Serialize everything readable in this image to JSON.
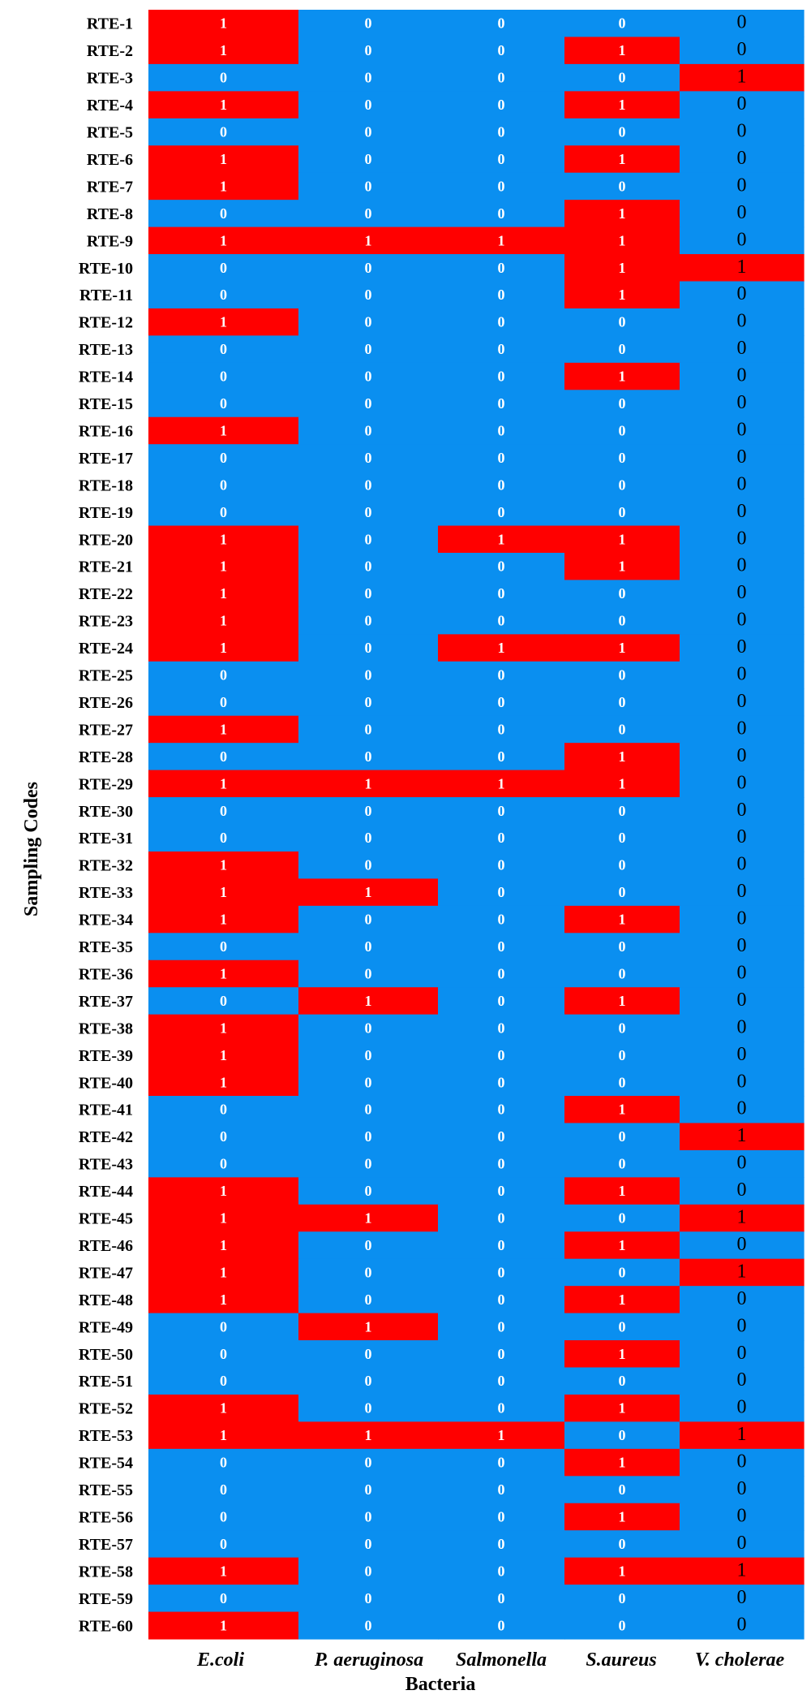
{
  "chart_data": {
    "type": "heatmap",
    "title": "",
    "xlabel": "Bacteria",
    "ylabel": "Sampling Codes",
    "columns": [
      "E.coli",
      "P. aeruginosa",
      "Salmonella",
      "S.aureus",
      "V. cholerae"
    ],
    "rows": [
      "RTE-1",
      "RTE-2",
      "RTE-3",
      "RTE-4",
      "RTE-5",
      "RTE-6",
      "RTE-7",
      "RTE-8",
      "RTE-9",
      "RTE-10",
      "RTE-11",
      "RTE-12",
      "RTE-13",
      "RTE-14",
      "RTE-15",
      "RTE-16",
      "RTE-17",
      "RTE-18",
      "RTE-19",
      "RTE-20",
      "RTE-21",
      "RTE-22",
      "RTE-23",
      "RTE-24",
      "RTE-25",
      "RTE-26",
      "RTE-27",
      "RTE-28",
      "RTE-29",
      "RTE-30",
      "RTE-31",
      "RTE-32",
      "RTE-33",
      "RTE-34",
      "RTE-35",
      "RTE-36",
      "RTE-37",
      "RTE-38",
      "RTE-39",
      "RTE-40",
      "RTE-41",
      "RTE-42",
      "RTE-43",
      "RTE-44",
      "RTE-45",
      "RTE-46",
      "RTE-47",
      "RTE-48",
      "RTE-49",
      "RTE-50",
      "RTE-51",
      "RTE-52",
      "RTE-53",
      "RTE-54",
      "RTE-55",
      "RTE-56",
      "RTE-57",
      "RTE-58",
      "RTE-59",
      "RTE-60"
    ],
    "values": [
      [
        1,
        0,
        0,
        0,
        0
      ],
      [
        1,
        0,
        0,
        1,
        0
      ],
      [
        0,
        0,
        0,
        0,
        1
      ],
      [
        1,
        0,
        0,
        1,
        0
      ],
      [
        0,
        0,
        0,
        0,
        0
      ],
      [
        1,
        0,
        0,
        1,
        0
      ],
      [
        1,
        0,
        0,
        0,
        0
      ],
      [
        0,
        0,
        0,
        1,
        0
      ],
      [
        1,
        1,
        1,
        1,
        0
      ],
      [
        0,
        0,
        0,
        1,
        1
      ],
      [
        0,
        0,
        0,
        1,
        0
      ],
      [
        1,
        0,
        0,
        0,
        0
      ],
      [
        0,
        0,
        0,
        0,
        0
      ],
      [
        0,
        0,
        0,
        1,
        0
      ],
      [
        0,
        0,
        0,
        0,
        0
      ],
      [
        1,
        0,
        0,
        0,
        0
      ],
      [
        0,
        0,
        0,
        0,
        0
      ],
      [
        0,
        0,
        0,
        0,
        0
      ],
      [
        0,
        0,
        0,
        0,
        0
      ],
      [
        1,
        0,
        1,
        1,
        0
      ],
      [
        1,
        0,
        0,
        1,
        0
      ],
      [
        1,
        0,
        0,
        0,
        0
      ],
      [
        1,
        0,
        0,
        0,
        0
      ],
      [
        1,
        0,
        1,
        1,
        0
      ],
      [
        0,
        0,
        0,
        0,
        0
      ],
      [
        0,
        0,
        0,
        0,
        0
      ],
      [
        1,
        0,
        0,
        0,
        0
      ],
      [
        0,
        0,
        0,
        1,
        0
      ],
      [
        1,
        1,
        1,
        1,
        0
      ],
      [
        0,
        0,
        0,
        0,
        0
      ],
      [
        0,
        0,
        0,
        0,
        0
      ],
      [
        1,
        0,
        0,
        0,
        0
      ],
      [
        1,
        1,
        0,
        0,
        0
      ],
      [
        1,
        0,
        0,
        1,
        0
      ],
      [
        0,
        0,
        0,
        0,
        0
      ],
      [
        1,
        0,
        0,
        0,
        0
      ],
      [
        0,
        1,
        0,
        1,
        0
      ],
      [
        1,
        0,
        0,
        0,
        0
      ],
      [
        1,
        0,
        0,
        0,
        0
      ],
      [
        1,
        0,
        0,
        0,
        0
      ],
      [
        0,
        0,
        0,
        1,
        0
      ],
      [
        0,
        0,
        0,
        0,
        1
      ],
      [
        0,
        0,
        0,
        0,
        0
      ],
      [
        1,
        0,
        0,
        1,
        0
      ],
      [
        1,
        1,
        0,
        0,
        1
      ],
      [
        1,
        0,
        0,
        1,
        0
      ],
      [
        1,
        0,
        0,
        0,
        1
      ],
      [
        1,
        0,
        0,
        1,
        0
      ],
      [
        0,
        1,
        0,
        0,
        0
      ],
      [
        0,
        0,
        0,
        1,
        0
      ],
      [
        0,
        0,
        0,
        0,
        0
      ],
      [
        1,
        0,
        0,
        1,
        0
      ],
      [
        1,
        1,
        1,
        0,
        1
      ],
      [
        0,
        0,
        0,
        1,
        0
      ],
      [
        0,
        0,
        0,
        0,
        0
      ],
      [
        0,
        0,
        0,
        1,
        0
      ],
      [
        0,
        0,
        0,
        0,
        0
      ],
      [
        1,
        0,
        0,
        1,
        1
      ],
      [
        0,
        0,
        0,
        0,
        0
      ],
      [
        1,
        0,
        0,
        0,
        0
      ]
    ],
    "colors": {
      "1": "#ff0000",
      "0": "#0a8ff0"
    },
    "grid": false
  }
}
